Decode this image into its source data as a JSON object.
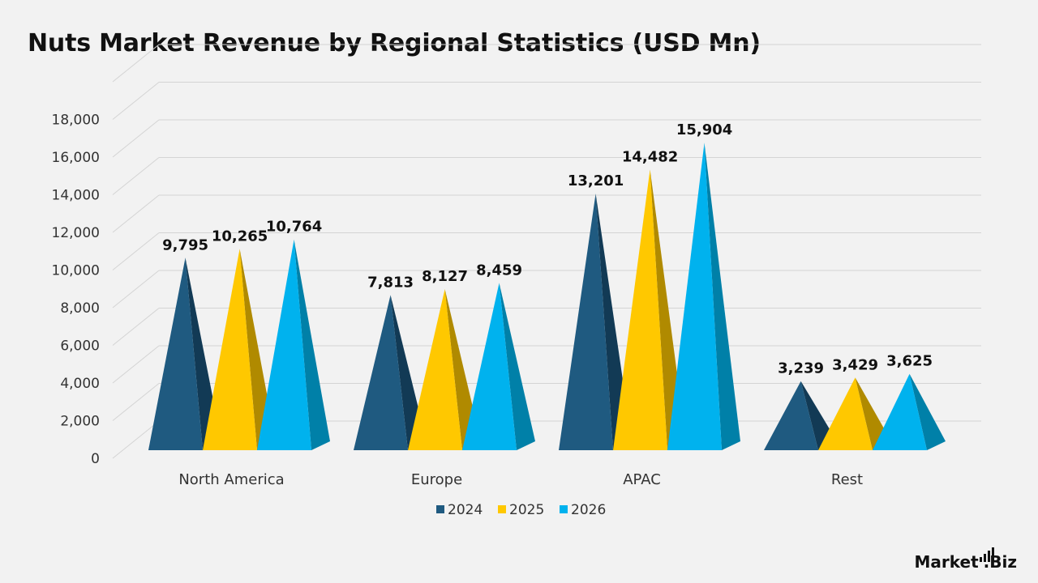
{
  "title": "Nuts Market Revenue by Regional Statistics (USD Mn)",
  "logo": {
    "text_main": "Market",
    "text_suffix": "Biz",
    "dot": "."
  },
  "colors": {
    "series": [
      "#1f5a80",
      "#ffc800",
      "#00b2ee"
    ],
    "series_dark": [
      "#123a55",
      "#b08a00",
      "#0080a8"
    ],
    "grid": "#d4d4d4",
    "text": "#333333",
    "label": "#111111"
  },
  "chart_data": {
    "type": "bar",
    "categories": [
      "North America",
      "Europe",
      "APAC",
      "Rest"
    ],
    "series": [
      {
        "name": "2024",
        "values": [
          9795,
          7813,
          13201,
          3239
        ],
        "labels": [
          "9,795",
          "7,813",
          "13,201",
          "3,239"
        ]
      },
      {
        "name": "2025",
        "values": [
          10265,
          8127,
          14482,
          3429
        ],
        "labels": [
          "10,265",
          "8,127",
          "14,482",
          "3,429"
        ]
      },
      {
        "name": "2026",
        "values": [
          10764,
          8459,
          15904,
          3625
        ],
        "labels": [
          "10,764",
          "8,459",
          "15,904",
          "3,625"
        ]
      }
    ],
    "yticks": [
      "0",
      "2,000",
      "4,000",
      "6,000",
      "8,000",
      "10,000",
      "12,000",
      "14,000",
      "16,000",
      "18,000"
    ],
    "ylim": [
      0,
      18000
    ],
    "bar_shape": "pyramid",
    "grid": true,
    "legend_position": "bottom"
  }
}
